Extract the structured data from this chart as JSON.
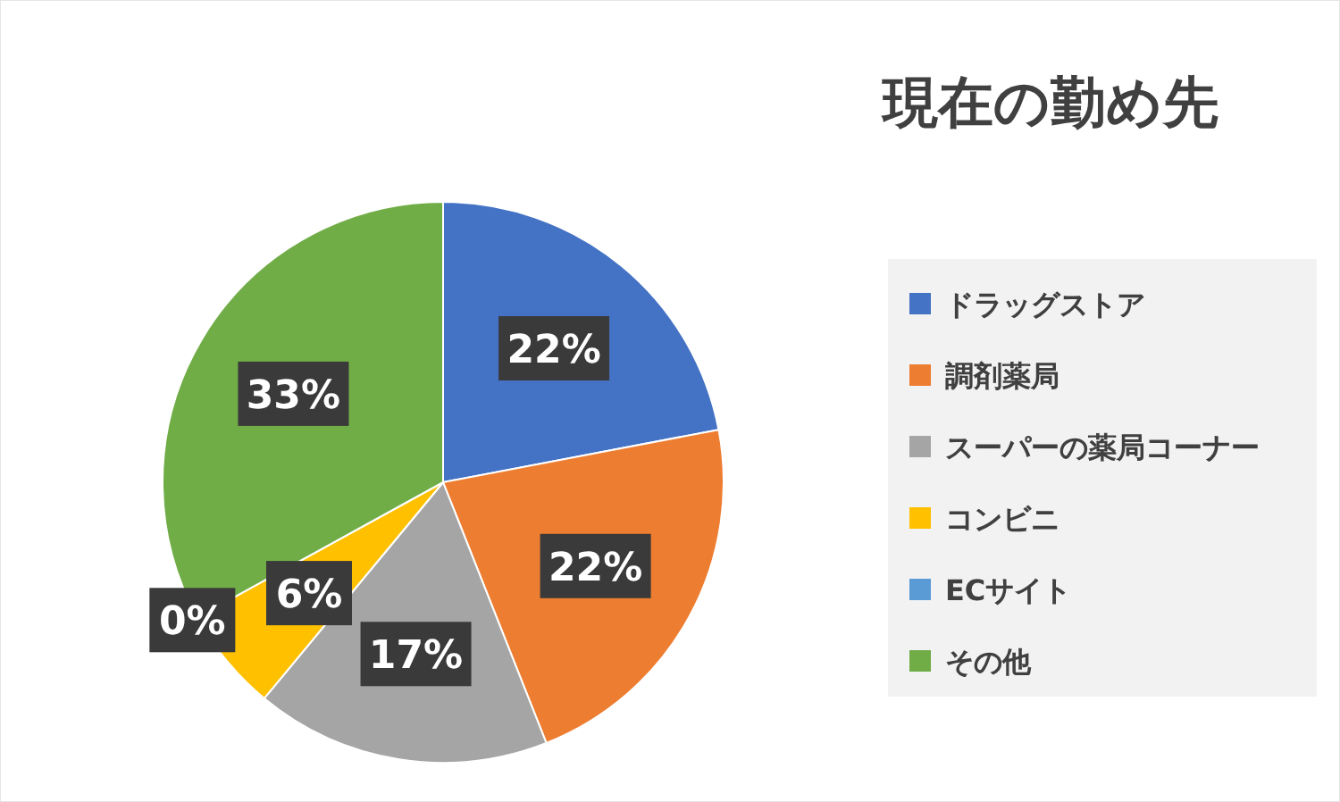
{
  "chart_data": {
    "type": "pie",
    "title": "現在の勤め先",
    "categories": [
      "ドラッグストア",
      "調剤薬局",
      "スーパーの薬局コーナー",
      "コンビニ",
      "ECサイト",
      "その他"
    ],
    "values": [
      22,
      22,
      17,
      6,
      0,
      33
    ],
    "colors": [
      "#4472c4",
      "#ed7d31",
      "#a5a5a5",
      "#ffc000",
      "#5b9bd5",
      "#70ad47"
    ],
    "value_labels": [
      "22%",
      "22%",
      "17%",
      "6%",
      "0%",
      "33%"
    ],
    "legend": "right"
  }
}
